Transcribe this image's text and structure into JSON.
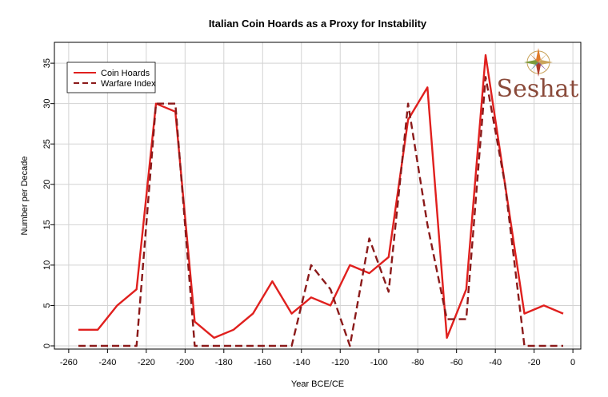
{
  "chart_data": {
    "type": "line",
    "title": "Italian Coin Hoards as a Proxy for Instability",
    "xlabel": "Year BCE/CE",
    "ylabel": "Number per Decade",
    "xlim": [
      -260,
      2
    ],
    "ylim": [
      0,
      37.5
    ],
    "xticks": [
      -260,
      -240,
      -220,
      -200,
      -180,
      -160,
      -140,
      -120,
      -100,
      -80,
      -60,
      -40,
      -20,
      0
    ],
    "yticks": [
      0,
      5,
      10,
      15,
      20,
      25,
      30,
      35
    ],
    "grid": true,
    "legend_position": "top-left",
    "series": [
      {
        "name": "Coin Hoards",
        "style": "solid",
        "color": "#e0201e",
        "x": [
          -255,
          -245,
          -235,
          -225,
          -215,
          -205,
          -195,
          -185,
          -175,
          -165,
          -155,
          -145,
          -135,
          -125,
          -115,
          -105,
          -95,
          -85,
          -75,
          -65,
          -55,
          -45,
          -35,
          -25,
          -15,
          -5
        ],
        "y": [
          2,
          2,
          5,
          7,
          30,
          29,
          3,
          1,
          2,
          4,
          8,
          4,
          6,
          5,
          10,
          9,
          11,
          28,
          32,
          1,
          7,
          36,
          20,
          4,
          5,
          4
        ]
      },
      {
        "name": "Warfare Index",
        "style": "dashed",
        "color": "#8b1a1a",
        "x": [
          -255,
          -245,
          -235,
          -225,
          -215,
          -205,
          -195,
          -185,
          -175,
          -165,
          -155,
          -145,
          -135,
          -125,
          -115,
          -105,
          -95,
          -85,
          -75,
          -65,
          -55,
          -45,
          -35,
          -25,
          -15,
          -5
        ],
        "y": [
          0,
          0,
          0,
          0,
          30,
          30,
          0,
          0,
          0,
          0,
          0,
          0,
          10,
          7,
          0,
          13.3,
          6.7,
          30,
          15,
          3.3,
          3.3,
          33.3,
          20,
          0,
          0,
          0
        ]
      }
    ]
  },
  "logo": {
    "text": "Seshat",
    "icon": "compass-rose-icon",
    "color": "#8a4a3a"
  }
}
